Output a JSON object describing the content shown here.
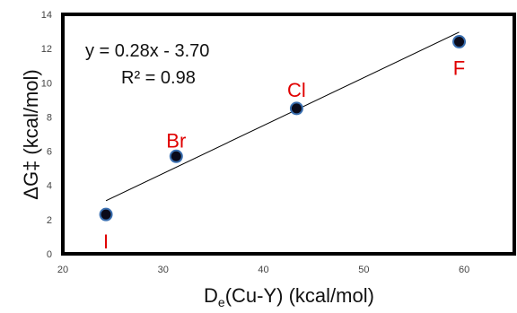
{
  "chart_data": {
    "type": "scatter",
    "title": "",
    "xlabel_main": "D",
    "xlabel_sub": "e",
    "xlabel_rest": "(Cu-Y) (kcal/mol)",
    "ylabel": "ΔG‡ (kcal/mol)",
    "xlim": [
      20,
      65
    ],
    "ylim": [
      0,
      14
    ],
    "x_ticks": [
      "20",
      "30",
      "40",
      "50",
      "60"
    ],
    "y_ticks": [
      "0",
      "2",
      "4",
      "6",
      "8",
      "10",
      "12",
      "14"
    ],
    "grid": false,
    "points": [
      {
        "label": "I",
        "x": 24.3,
        "y": 2.3
      },
      {
        "label": "Br",
        "x": 31.3,
        "y": 5.7
      },
      {
        "label": "Cl",
        "x": 43.3,
        "y": 8.5
      },
      {
        "label": "F",
        "x": 59.5,
        "y": 12.4
      }
    ],
    "trendline": {
      "slope": 0.28,
      "intercept": -3.7,
      "x_range": [
        24.3,
        59.5
      ]
    },
    "equation_text": "y = 0.28x - 3.70",
    "r2_text": "R² = 0.98",
    "colors": {
      "point_fill": "#0a0a1a",
      "point_stroke": "#3a6fb0",
      "label": "#e00000",
      "trendline": "#000000",
      "frame": "#000000"
    }
  }
}
